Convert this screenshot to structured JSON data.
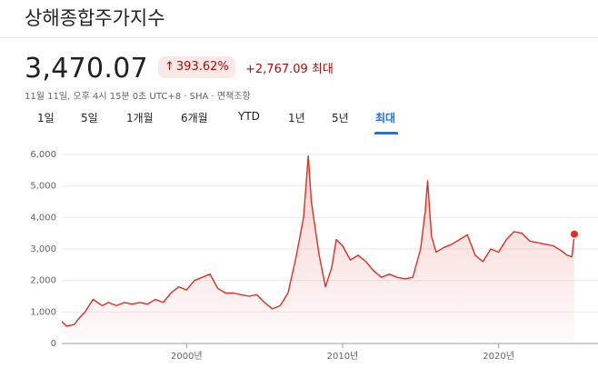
{
  "header": {
    "title": "상해종합주가지수",
    "price": "3,470.07",
    "change_percent": "393.62%",
    "change_abs": "+2,767.09 최대",
    "meta": "11월 11일, 오후 4시 15분 0초 UTC+8 · SHA · 면책조항"
  },
  "range_tabs": [
    "1일",
    "5일",
    "1개월",
    "6개월",
    "YTD",
    "1년",
    "5년",
    "최대"
  ],
  "active_tab": "최대",
  "colors": {
    "accent": "#1a73e8",
    "down_red": "#a50e0e",
    "line": "#d93025"
  },
  "chart_data": {
    "type": "area",
    "title": "",
    "xlabel": "",
    "ylabel": "",
    "ylim": [
      0,
      6000
    ],
    "y_ticks": [
      "6,000",
      "5,000",
      "4,000",
      "3,000",
      "2,000",
      "1,000",
      "0"
    ],
    "x_ticks": [
      "2000년",
      "2010년",
      "2020년"
    ],
    "grid": true,
    "legend": "none",
    "series": [
      {
        "x": [
          1992.0,
          1992.3,
          1992.8,
          1993.1,
          1993.5,
          1994.0,
          1994.6,
          1995.0,
          1995.5,
          1996.0,
          1996.5,
          1997.0,
          1997.5,
          1998.0,
          1998.5,
          1999.0,
          1999.5,
          2000.0,
          2000.5,
          2001.0,
          2001.5,
          2002.0,
          2002.5,
          2003.0,
          2003.5,
          2004.0,
          2004.5,
          2005.0,
          2005.5,
          2006.0,
          2006.5,
          2007.0,
          2007.5,
          2007.8,
          2008.0,
          2008.5,
          2008.9,
          2009.3,
          2009.6,
          2010.0,
          2010.5,
          2011.0,
          2011.5,
          2012.0,
          2012.5,
          2013.0,
          2013.5,
          2014.0,
          2014.5,
          2015.0,
          2015.3,
          2015.45,
          2015.7,
          2016.0,
          2016.5,
          2017.0,
          2017.5,
          2018.0,
          2018.5,
          2019.0,
          2019.5,
          2020.0,
          2020.5,
          2021.0,
          2021.5,
          2022.0,
          2022.5,
          2023.0,
          2023.5,
          2024.0,
          2024.4,
          2024.7,
          2024.86
        ],
        "values": [
          700,
          550,
          600,
          800,
          1000,
          1400,
          1200,
          1300,
          1200,
          1300,
          1250,
          1300,
          1250,
          1400,
          1300,
          1600,
          1800,
          1700,
          2000,
          2100,
          2200,
          1750,
          1600,
          1600,
          1550,
          1500,
          1550,
          1300,
          1100,
          1200,
          1600,
          2700,
          4000,
          5950,
          4500,
          2800,
          1800,
          2400,
          3300,
          3100,
          2650,
          2800,
          2600,
          2300,
          2100,
          2200,
          2100,
          2050,
          2100,
          3000,
          4200,
          5170,
          3400,
          2900,
          3050,
          3150,
          3300,
          3450,
          2800,
          2600,
          3000,
          2900,
          3300,
          3550,
          3500,
          3250,
          3200,
          3150,
          3100,
          2950,
          2800,
          2750,
          3470
        ]
      }
    ]
  }
}
